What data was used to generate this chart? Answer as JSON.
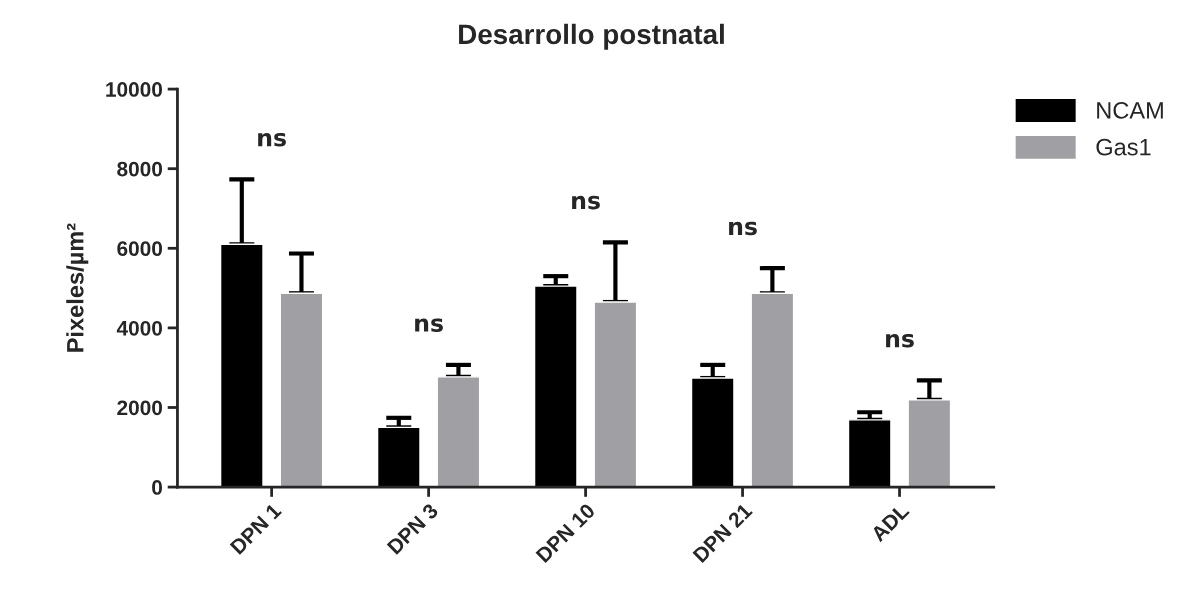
{
  "chart_data": {
    "type": "bar",
    "title": "Desarrollo postnatal",
    "ylabel": "Pixeles/µm²",
    "categories": [
      "DPN 1",
      "DPN 3",
      "DPN 10",
      "DPN 21",
      "ADL"
    ],
    "series": [
      {
        "name": "NCAM",
        "color": "#000000",
        "values": [
          6100,
          1500,
          5050,
          2740,
          1690
        ],
        "errors": [
          1630,
          240,
          250,
          330,
          190
        ]
      },
      {
        "name": "Gas1",
        "color": "#a0a0a4",
        "values": [
          4870,
          2770,
          4650,
          4870,
          2190
        ],
        "errors": [
          1000,
          300,
          1500,
          630,
          490
        ]
      }
    ],
    "ylim": [
      0,
      10000
    ],
    "yticks": [
      0,
      2000,
      4000,
      6000,
      8000,
      10000
    ],
    "grid": false,
    "legend": "top right",
    "annotations": [
      "ns",
      "ns",
      "ns",
      "ns",
      "ns"
    ]
  }
}
